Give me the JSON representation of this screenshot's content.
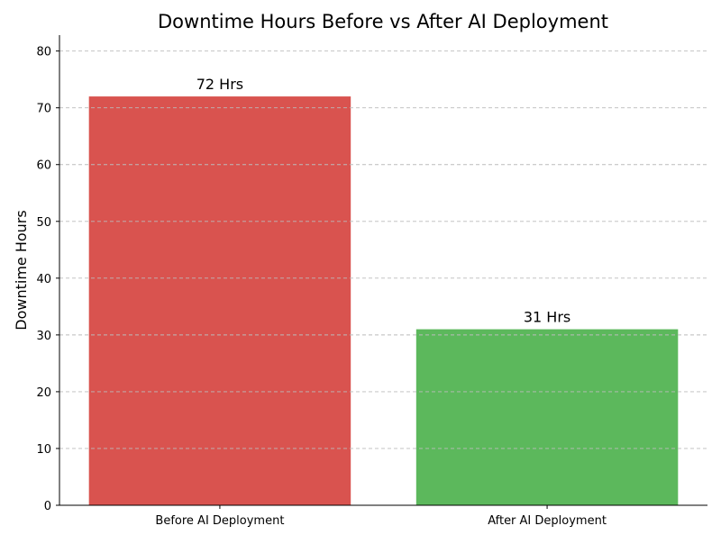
{
  "chart_data": {
    "type": "bar",
    "title": "Downtime Hours Before vs After AI Deployment",
    "xlabel": "",
    "ylabel": "Downtime Hours",
    "categories": [
      "Before AI Deployment",
      "After AI Deployment"
    ],
    "values": [
      72,
      31
    ],
    "data_labels": [
      "72 Hrs",
      "31 Hrs"
    ],
    "colors": [
      "#d9534f",
      "#5cb85c"
    ],
    "ylim": [
      0,
      82.8
    ],
    "yticks": [
      0,
      10,
      20,
      30,
      40,
      50,
      60,
      70,
      80
    ],
    "grid": "y-dashed"
  }
}
